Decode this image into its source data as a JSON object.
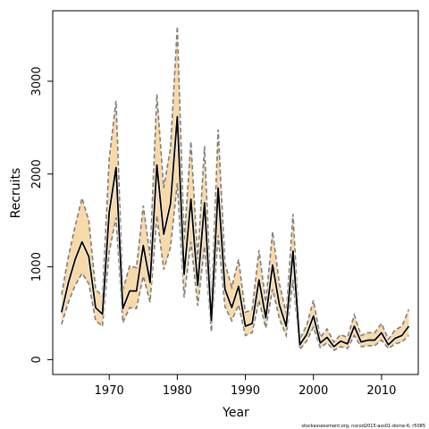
{
  "chart_data": {
    "type": "line",
    "xlabel": "Year",
    "ylabel": "Recruits",
    "xlim": [
      1961.7,
      2015.4
    ],
    "ylim": [
      -160,
      3760
    ],
    "x_ticks": [
      1970,
      1980,
      1990,
      2000,
      2010
    ],
    "y_ticks": [
      0,
      1000,
      2000,
      3000
    ],
    "grid": false,
    "colors": {
      "band": "#f8d9a8",
      "median": "#000000",
      "bounds": "#7f7f7f"
    },
    "source_note": "stockassessment.org, nscod2015-ass01-dome-6, r5085",
    "series": [
      {
        "x": [
          1963,
          1964,
          1965,
          1966,
          1967,
          1968,
          1969,
          1970,
          1971,
          1972,
          1973,
          1974,
          1975,
          1976,
          1977,
          1978,
          1979,
          1980,
          1981,
          1982,
          1983,
          1984,
          1985,
          1986,
          1987,
          1988,
          1989,
          1990,
          1991,
          1992,
          1993,
          1994,
          1995,
          1996,
          1997,
          1998,
          1999,
          2000,
          2001,
          2002,
          2003,
          2004,
          2005,
          2006,
          2007,
          2008,
          2009,
          2010,
          2011,
          2012,
          2013,
          2014
        ],
        "estimate": [
          510,
          830,
          1080,
          1270,
          1110,
          560,
          490,
          1590,
          2070,
          550,
          740,
          740,
          1230,
          830,
          2100,
          1350,
          1680,
          2620,
          920,
          1730,
          800,
          1690,
          420,
          1850,
          760,
          560,
          790,
          360,
          390,
          860,
          450,
          1020,
          590,
          360,
          1170,
          160,
          270,
          470,
          180,
          240,
          140,
          200,
          170,
          360,
          190,
          210,
          210,
          290,
          160,
          230,
          260,
          360
        ],
        "lower": [
          380,
          620,
          800,
          930,
          820,
          420,
          360,
          1160,
          1530,
          400,
          560,
          550,
          900,
          620,
          1550,
          970,
          1210,
          1900,
          670,
          1270,
          580,
          1220,
          300,
          1340,
          570,
          420,
          590,
          260,
          290,
          640,
          340,
          760,
          440,
          260,
          860,
          110,
          200,
          350,
          130,
          180,
          100,
          140,
          120,
          260,
          140,
          150,
          150,
          210,
          120,
          170,
          190,
          260
        ],
        "upper": [
          700,
          1110,
          1440,
          1740,
          1500,
          760,
          680,
          2170,
          2790,
          750,
          1010,
          990,
          1660,
          1120,
          2860,
          1850,
          2280,
          3590,
          1280,
          2350,
          1080,
          2300,
          570,
          2480,
          1040,
          780,
          1080,
          510,
          540,
          1180,
          620,
          1380,
          820,
          500,
          1570,
          220,
          370,
          640,
          240,
          330,
          190,
          270,
          240,
          480,
          260,
          290,
          290,
          390,
          220,
          320,
          360,
          540
        ]
      }
    ]
  }
}
